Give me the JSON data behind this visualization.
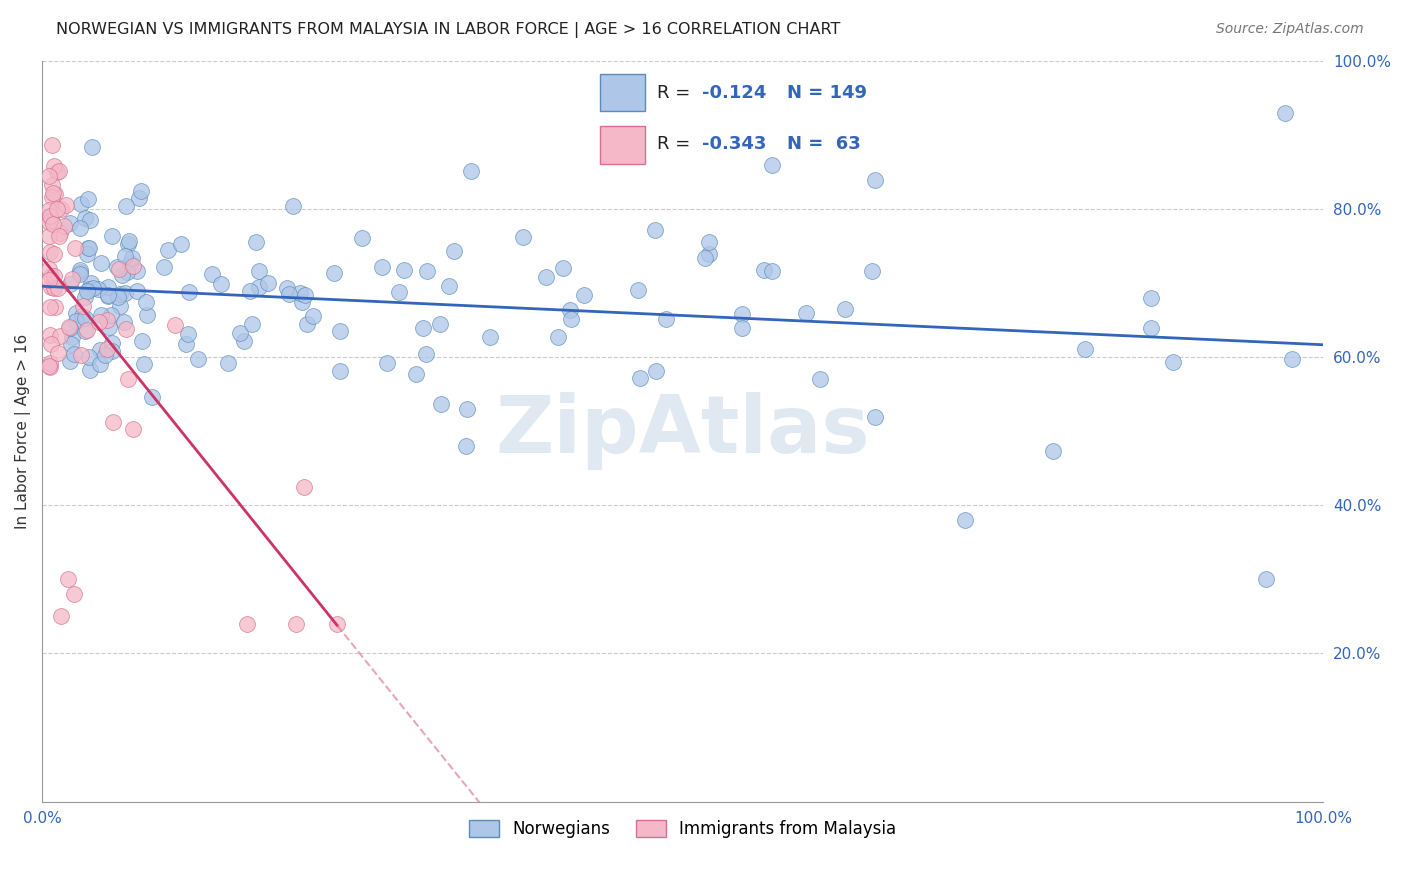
{
  "title": "NORWEGIAN VS IMMIGRANTS FROM MALAYSIA IN LABOR FORCE | AGE > 16 CORRELATION CHART",
  "source": "Source: ZipAtlas.com",
  "ylabel": "In Labor Force | Age > 16",
  "norwegians_color": "#aec6e8",
  "norwegians_edge": "#5b8db8",
  "immigrants_color": "#f4b8c8",
  "immigrants_edge": "#d47090",
  "trend_blue": "#3366bb",
  "trend_pink_solid": "#cc3366",
  "trend_pink_dash": "#e08098",
  "watermark": "ZipAtlas",
  "legend_R_blue": "-0.124",
  "legend_N_blue": "149",
  "legend_R_pink": "-0.343",
  "legend_N_pink": "63"
}
